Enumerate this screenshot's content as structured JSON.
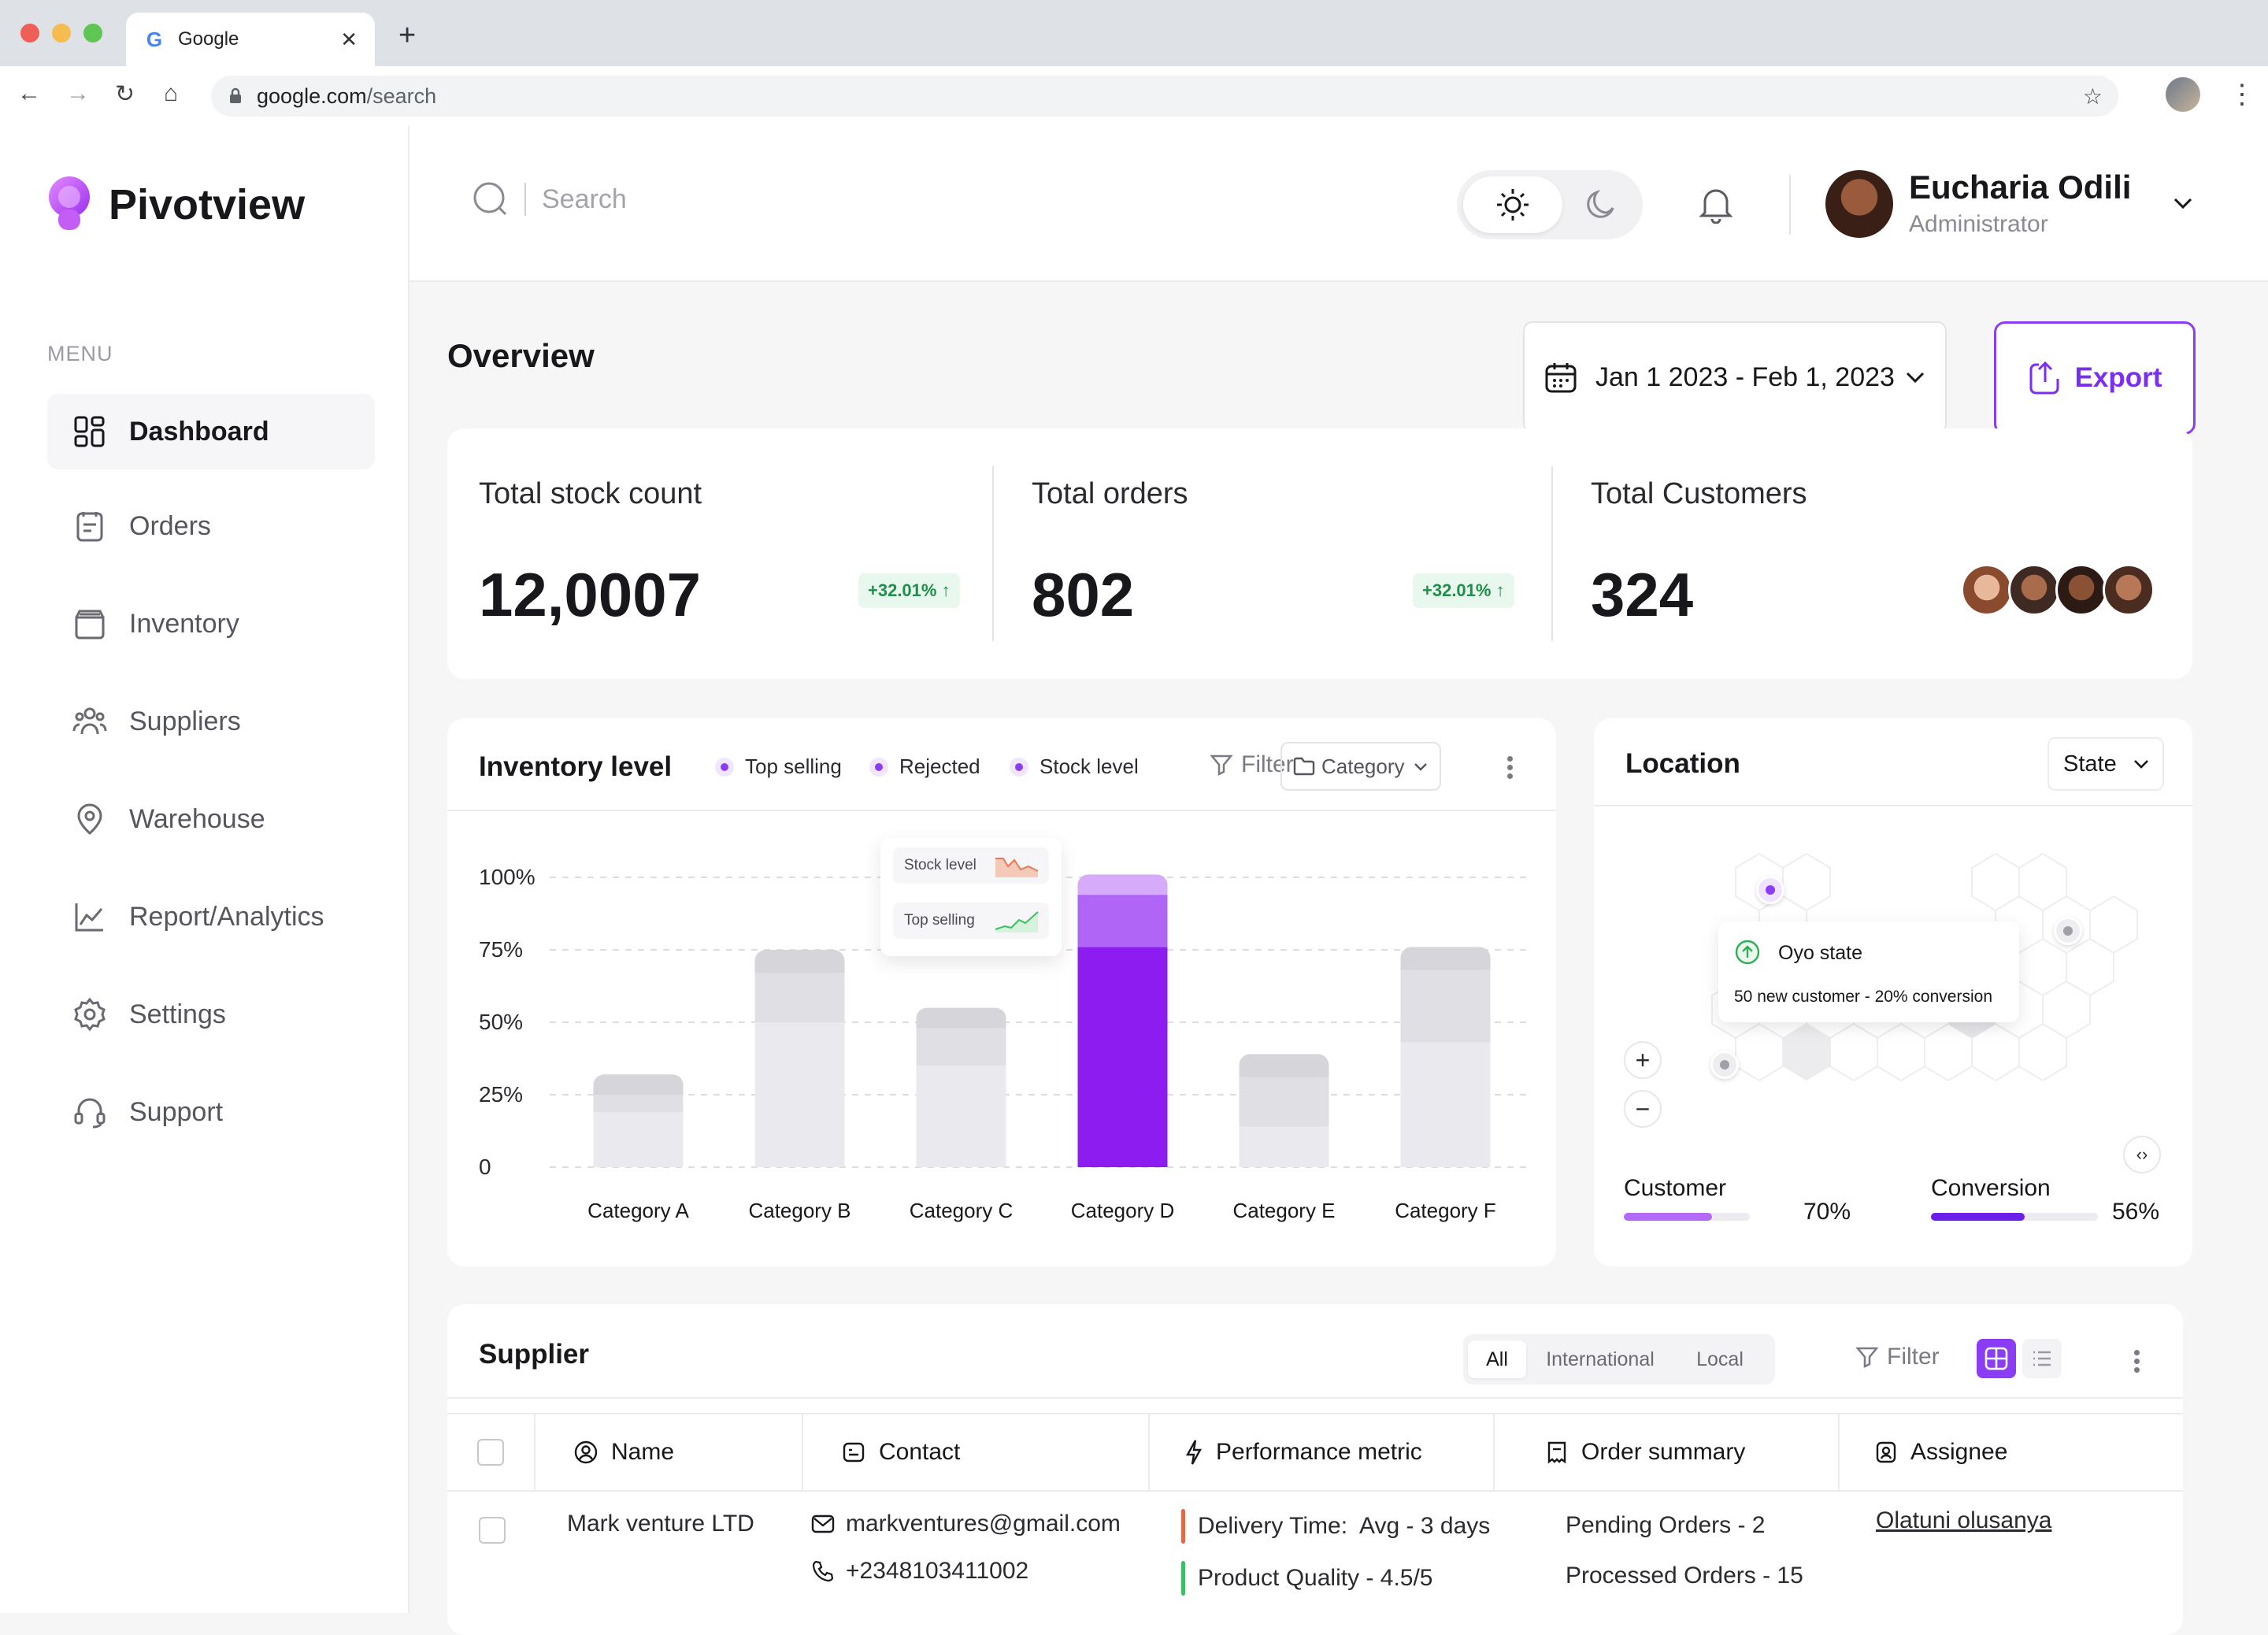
{
  "browser": {
    "tab_title": "Google",
    "url_domain": "google.com",
    "url_path": "/search"
  },
  "app": {
    "name": "Pivotview"
  },
  "sidebar": {
    "menu_label": "MENU",
    "items": [
      {
        "label": "Dashboard",
        "icon": "dashboard-icon",
        "active": true
      },
      {
        "label": "Orders",
        "icon": "orders-icon"
      },
      {
        "label": "Inventory",
        "icon": "inventory-icon"
      },
      {
        "label": "Suppliers",
        "icon": "suppliers-icon"
      },
      {
        "label": "Warehouse",
        "icon": "warehouse-icon"
      },
      {
        "label": "Report/Analytics",
        "icon": "analytics-icon"
      },
      {
        "label": "Settings",
        "icon": "settings-icon"
      },
      {
        "label": "Support",
        "icon": "support-icon"
      }
    ]
  },
  "header": {
    "search_placeholder": "Search",
    "user": {
      "name": "Eucharia Odili",
      "role": "Administrator"
    }
  },
  "overview": {
    "title": "Overview",
    "date_range": "Jan 1 2023 - Feb 1, 2023",
    "export_label": "Export"
  },
  "stats": [
    {
      "label": "Total stock count",
      "value": "12,0007",
      "change": "+32.01% ↑"
    },
    {
      "label": "Total orders",
      "value": "802",
      "change": "+32.01% ↑"
    },
    {
      "label": "Total Customers",
      "value": "324"
    }
  ],
  "inventory": {
    "title": "Inventory level",
    "legend": [
      "Top selling",
      "Rejected",
      "Stock level"
    ],
    "filter_label": "Filter",
    "category_label": "Category",
    "tooltip": [
      "Stock level",
      "Top selling"
    ],
    "accent": "#8b3df5"
  },
  "chart_data": {
    "type": "bar",
    "stacked": true,
    "categories": [
      "Category A",
      "Category B",
      "Category C",
      "Category D",
      "Category E",
      "Category F"
    ],
    "series": [
      {
        "name": "Stock level",
        "values": [
          19,
          50,
          35,
          76,
          14,
          43
        ]
      },
      {
        "name": "Rejected",
        "values": [
          6,
          17,
          13,
          18,
          17,
          25
        ]
      },
      {
        "name": "Top selling",
        "values": [
          7,
          8,
          7,
          7,
          8,
          8
        ]
      }
    ],
    "y_ticks": [
      "100%",
      "75%",
      "50%",
      "25%",
      "0"
    ],
    "ylim": [
      0,
      100
    ],
    "highlight": "Category D",
    "grid": true
  },
  "location": {
    "title": "Location",
    "select_label": "State",
    "popup_title": "Oyo state",
    "popup_text": "50 new customer - 20% conversion",
    "metrics": [
      {
        "label": "Customer",
        "value": 70,
        "display": "70%",
        "color": "#b36bf7"
      },
      {
        "label": "Conversion",
        "value": 56,
        "display": "56%",
        "color": "#6a1ee8"
      }
    ]
  },
  "supplier": {
    "title": "Supplier",
    "tabs": [
      "All",
      "International",
      "Local"
    ],
    "filter_label": "Filter",
    "columns": [
      "Name",
      "Contact",
      "Performance metric",
      "Order summary",
      "Assignee"
    ],
    "rows": [
      {
        "name": "Mark venture LTD",
        "email": "markventures@gmail.com",
        "phone": "+2348103411002",
        "metric1": "Delivery Time:  Avg - 3 days",
        "metric2": "Product Quality - 4.5/5",
        "order1": "Pending Orders - 2",
        "order2": "Processed Orders - 15",
        "assignee": "Olatuni olusanya"
      }
    ]
  }
}
